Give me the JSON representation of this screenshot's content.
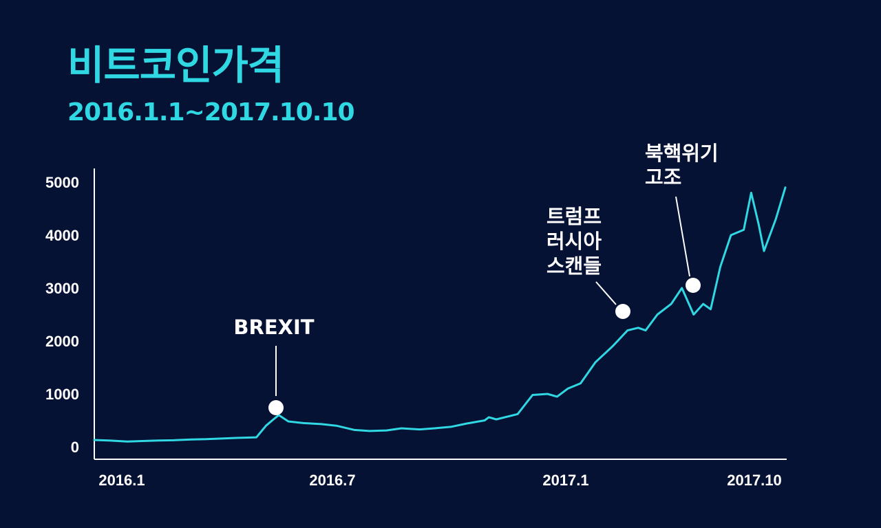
{
  "title": "비트코인가격",
  "subtitle": "2016.1.1~2017.10.10",
  "colors": {
    "background": "#061233",
    "accent": "#2fd8e3",
    "axis": "#ffffff"
  },
  "chart_data": {
    "type": "line",
    "title": "비트코인가격",
    "subtitle": "2016.1.1~2017.10.10",
    "xlabel": "",
    "ylabel": "",
    "x_tick_labels": [
      "2016.1",
      "2016.7",
      "2017.1",
      "2017.10"
    ],
    "y_tick_labels": [
      "0",
      "1000",
      "2000",
      "3000",
      "4000",
      "5000"
    ],
    "ylim": [
      0,
      5400
    ],
    "grid": false,
    "series": [
      {
        "x": [
          "2016-01-01",
          "2016-01-15",
          "2016-02-01",
          "2016-02-15",
          "2016-03-01",
          "2016-03-15",
          "2016-04-01",
          "2016-04-15",
          "2016-05-01",
          "2016-05-15",
          "2016-06-01",
          "2016-06-10",
          "2016-06-17",
          "2016-06-22",
          "2016-07-01",
          "2016-07-15",
          "2016-08-01",
          "2016-08-15",
          "2016-09-01",
          "2016-09-15",
          "2016-10-01",
          "2016-10-15",
          "2016-11-01",
          "2016-11-15",
          "2016-12-01",
          "2016-12-15",
          "2017-01-01",
          "2017-01-05",
          "2017-01-12",
          "2017-02-01",
          "2017-02-15",
          "2017-03-01",
          "2017-03-10",
          "2017-03-20",
          "2017-04-01",
          "2017-04-15",
          "2017-05-01",
          "2017-05-15",
          "2017-05-25",
          "2017-06-01",
          "2017-06-12",
          "2017-06-25",
          "2017-07-05",
          "2017-07-16",
          "2017-07-25",
          "2017-08-01",
          "2017-08-10",
          "2017-08-20",
          "2017-09-01",
          "2017-09-08",
          "2017-09-15",
          "2017-09-20",
          "2017-10-01",
          "2017-10-10"
        ],
        "values": [
          130,
          120,
          100,
          110,
          120,
          125,
          140,
          145,
          160,
          170,
          180,
          400,
          520,
          600,
          480,
          450,
          430,
          400,
          320,
          300,
          310,
          350,
          330,
          350,
          380,
          440,
          500,
          560,
          520,
          620,
          980,
          1000,
          950,
          1100,
          1200,
          1600,
          1900,
          2200,
          2250,
          2200,
          2500,
          2700,
          3000,
          2500,
          2700,
          2600,
          3400,
          4000,
          4100,
          4800,
          4200,
          3700,
          4300,
          4900
        ]
      }
    ],
    "annotations": [
      {
        "lines": [
          "BREXIT"
        ],
        "date": "2016-06-22"
      },
      {
        "lines": [
          "트럼프",
          "러시아",
          "스캔들"
        ],
        "date": "2017-05-25"
      },
      {
        "lines": [
          "북핵위기",
          "고조"
        ],
        "date": "2017-07-16"
      }
    ]
  }
}
